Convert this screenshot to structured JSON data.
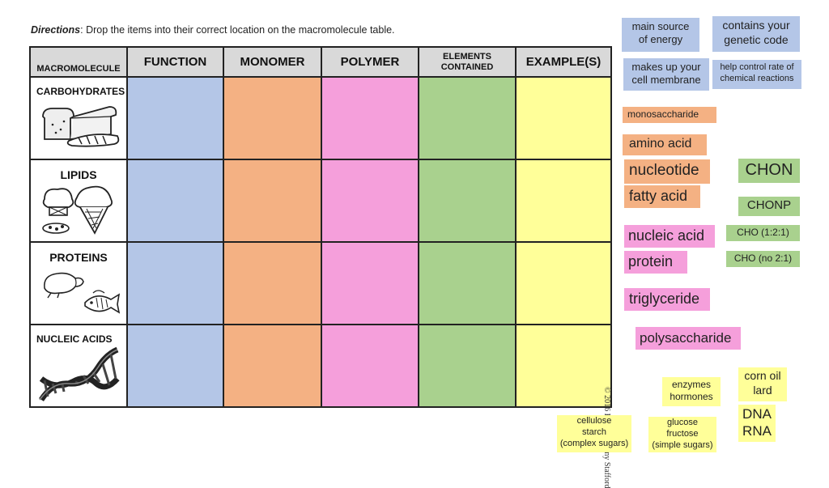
{
  "directions": {
    "lead": "Directions",
    "text": ": Drop the items into their correct location on the macromolecule table."
  },
  "table": {
    "headers": [
      "MACROMOLECULE",
      "FUNCTION",
      "MONOMER",
      "POLYMER",
      "ELEMENTS",
      "CONTAINED",
      "EXAMPLE(S)"
    ],
    "rows": [
      "CARBOHYDRATES",
      "LIPIDS",
      "PROTEINS",
      "NUCLEIC ACIDS"
    ]
  },
  "cards": {
    "energy": [
      "main source",
      "of energy"
    ],
    "genetic": [
      "contains your",
      "genetic code"
    ],
    "membrane": [
      "makes up your",
      "cell membrane"
    ],
    "rate": [
      "help control rate of",
      "chemical reactions"
    ],
    "monosaccharide": "monosaccharide",
    "amino_acid": "amino acid",
    "nucleotide": "nucleotide",
    "fatty_acid": "fatty acid",
    "nucleic_acid": "nucleic acid",
    "protein": "protein",
    "triglyceride": "triglyceride",
    "polysaccharide": "polysaccharide",
    "chon": "CHON",
    "chonp": "CHONP",
    "cho_121": "CHO (1:2:1)",
    "cho_no21": "CHO (no 2:1)",
    "enzymes": [
      "enzymes",
      "hormones"
    ],
    "corn_oil": [
      "corn oil",
      "lard"
    ],
    "dna": [
      "DNA",
      "RNA"
    ],
    "cellulose": [
      "cellulose",
      "starch",
      "(complex sugars)"
    ],
    "glucose": [
      "glucose",
      "fructose",
      "(simple sugars)"
    ]
  },
  "copyright": "© 2016 Katie & Jenny Stafford",
  "colors": {
    "function": "#b4c6e7",
    "monomer": "#f4b183",
    "polymer": "#f59fdb",
    "elements": "#a9d18e",
    "examples": "#ffff99",
    "header": "#d9d9d9"
  },
  "icons": [
    "bread-illustration",
    "ice-cream-illustration",
    "chicken-fish-illustration",
    "dna-illustration"
  ]
}
